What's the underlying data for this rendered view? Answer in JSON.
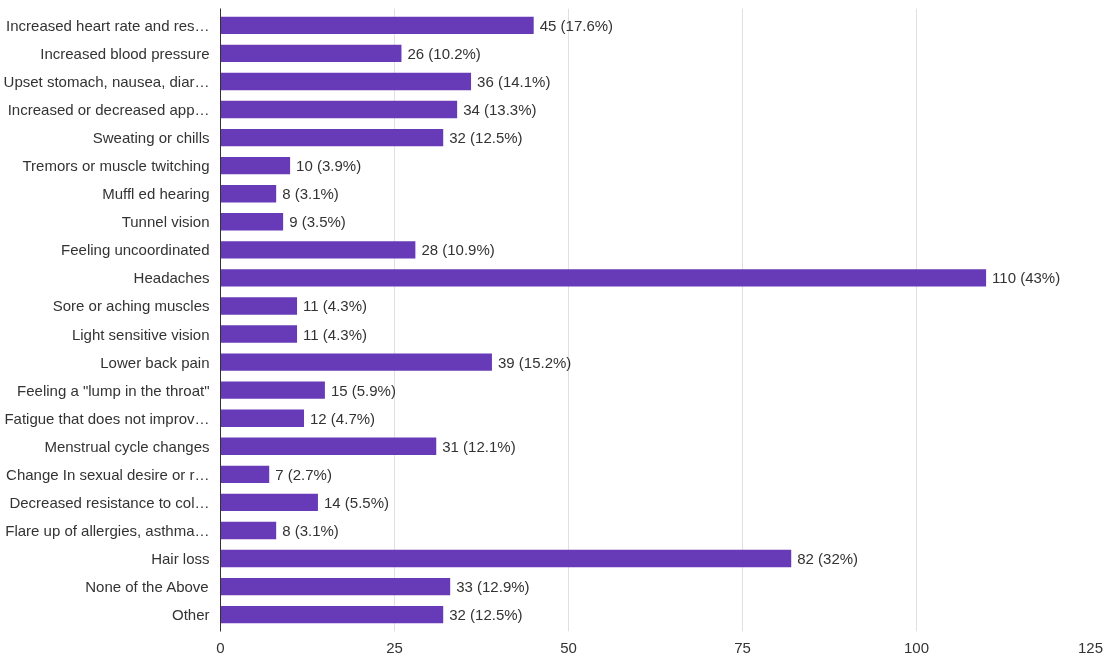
{
  "chart_data": {
    "type": "bar",
    "orientation": "horizontal",
    "color": "#673ab7",
    "categories": [
      "Increased heart rate and res…",
      "Increased blood pressure",
      "Upset stomach, nausea, diar…",
      "Increased or decreased app…",
      "Sweating or chills",
      "Tremors or muscle twitching",
      "Muffl ed hearing",
      "Tunnel vision",
      "Feeling uncoordinated",
      "Headaches",
      "Sore or aching muscles",
      "Light sensitive vision",
      "Lower back pain",
      "Feeling a \"lump in the throat\"",
      "Fatigue that does not improv…",
      "Menstrual cycle changes",
      "Change In sexual desire or r…",
      "Decreased resistance to col…",
      "Flare up of allergies, asthma…",
      "Hair loss",
      "None of the Above",
      "Other"
    ],
    "values": [
      45,
      26,
      36,
      34,
      32,
      10,
      8,
      9,
      28,
      110,
      11,
      11,
      39,
      15,
      12,
      31,
      7,
      14,
      8,
      82,
      33,
      32
    ],
    "value_labels": [
      "45 (17.6%)",
      "26 (10.2%)",
      "36 (14.1%)",
      "34 (13.3%)",
      "32 (12.5%)",
      "10 (3.9%)",
      "8 (3.1%)",
      "9 (3.5%)",
      "28 (10.9%)",
      "110 (43%)",
      "11 (4.3%)",
      "11 (4.3%)",
      "39 (15.2%)",
      "15 (5.9%)",
      "12 (4.7%)",
      "31 (12.1%)",
      "7 (2.7%)",
      "14 (5.5%)",
      "8 (3.1%)",
      "82 (32%)",
      "33 (12.9%)",
      "32 (12.5%)"
    ],
    "xlim": [
      0,
      125
    ],
    "xticks": [
      0,
      25,
      50,
      75,
      100,
      125
    ],
    "grid": "x"
  }
}
